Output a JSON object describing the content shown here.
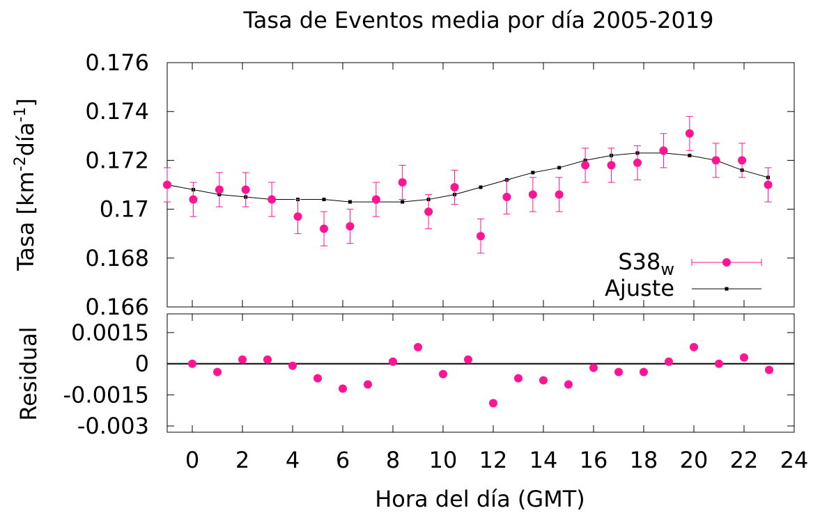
{
  "chart_data": {
    "type": "scatter",
    "title": "Tasa de Eventos media por día  2005-2019",
    "xlabel": "Hora del día (GMT)",
    "xlim": [
      -1,
      24
    ],
    "xticks": [
      "0",
      "2",
      "4",
      "6",
      "8",
      "10",
      "12",
      "14",
      "16",
      "18",
      "20",
      "22",
      "24"
    ],
    "colors": {
      "data": "#ff1493",
      "fit": "#000000",
      "zero_line": "#000000"
    },
    "main_panel": {
      "ylabel": "Tasa [km-2día-1]",
      "ylabel_base": "Tasa [km",
      "ylabel_sup1": "-2",
      "ylabel_mid": "día",
      "ylabel_sup2": "-1",
      "ylabel_end": "]",
      "ylim": [
        0.166,
        0.176
      ],
      "yticks": [
        "0.166",
        "0.168",
        "0.17",
        "0.172",
        "0.174",
        "0.176"
      ],
      "legend_position": "bottom-right",
      "series": [
        {
          "name": "S38w",
          "name_base": "S38",
          "name_sub": "w",
          "marker": "circle",
          "x": [
            -1,
            0.04,
            1.08,
            2.13,
            3.17,
            4.21,
            5.25,
            6.29,
            7.33,
            8.38,
            9.42,
            10.46,
            11.5,
            12.54,
            13.58,
            14.63,
            15.67,
            16.71,
            17.75,
            18.79,
            19.83,
            20.88,
            21.92,
            22.96
          ],
          "y": [
            0.171,
            0.1704,
            0.1708,
            0.1708,
            0.1704,
            0.1697,
            0.1692,
            0.1693,
            0.1704,
            0.1711,
            0.1699,
            0.1709,
            0.1689,
            0.1705,
            0.1706,
            0.1706,
            0.1718,
            0.1718,
            0.1719,
            0.1724,
            0.1731,
            0.172,
            0.172,
            0.171
          ],
          "yerr": [
            0.0007,
            0.0007,
            0.0007,
            0.0007,
            0.0007,
            0.0007,
            0.0007,
            0.0007,
            0.0007,
            0.0007,
            0.0007,
            0.0007,
            0.0007,
            0.0007,
            0.0007,
            0.0007,
            0.0007,
            0.0007,
            0.0007,
            0.0007,
            0.0007,
            0.0007,
            0.0007,
            0.0007
          ]
        },
        {
          "name": "Ajuste",
          "marker": "square",
          "x": [
            -1,
            0.04,
            1.08,
            2.13,
            3.17,
            4.21,
            5.25,
            6.29,
            7.33,
            8.38,
            9.42,
            10.46,
            11.5,
            12.54,
            13.58,
            14.63,
            15.67,
            16.71,
            17.75,
            18.79,
            19.83,
            20.88,
            21.92,
            22.96
          ],
          "y": [
            0.171,
            0.1708,
            0.1706,
            0.1705,
            0.1704,
            0.1704,
            0.1704,
            0.1703,
            0.1703,
            0.1703,
            0.1704,
            0.1706,
            0.1709,
            0.1712,
            0.1715,
            0.1717,
            0.172,
            0.1722,
            0.1723,
            0.1723,
            0.1722,
            0.172,
            0.1716,
            0.1713
          ]
        }
      ]
    },
    "residual_panel": {
      "ylabel": "Residual",
      "ylim": [
        -0.0033,
        0.0024
      ],
      "yticks": [
        "0.0015",
        "0",
        "-0.0015",
        "-0.003"
      ],
      "ytick_values": [
        0.0015,
        0,
        -0.0015,
        -0.003
      ],
      "zero_line": true,
      "series": [
        {
          "name": "",
          "marker": "circle",
          "x": [
            0,
            1,
            2,
            3,
            4,
            5,
            6,
            7,
            8,
            9,
            10,
            11,
            12,
            13,
            14,
            15,
            16,
            17,
            18,
            19,
            20,
            21,
            22,
            23
          ],
          "y": [
            0.0,
            -0.0004,
            0.0002,
            0.0002,
            -0.0001,
            -0.0007,
            -0.0012,
            -0.001,
            0.0001,
            0.0008,
            -0.0005,
            0.0002,
            -0.0019,
            -0.0007,
            -0.0008,
            -0.001,
            -0.0002,
            -0.0004,
            -0.0004,
            0.0001,
            0.0008,
            0.0,
            0.0003,
            -0.0003
          ]
        }
      ]
    }
  }
}
